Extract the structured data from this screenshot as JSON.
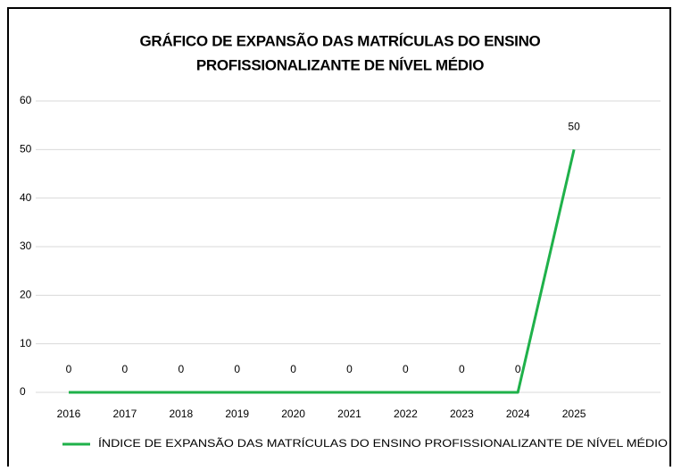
{
  "chart_data": {
    "type": "line",
    "title": [
      "GRÁFICO DE EXPANSÃO DAS MATRÍCULAS DO ENSINO",
      "PROFISSIONALIZANTE DE NÍVEL MÉDIO"
    ],
    "categories": [
      "2016",
      "2017",
      "2018",
      "2019",
      "2020",
      "2021",
      "2022",
      "2023",
      "2024",
      "2025"
    ],
    "series": [
      {
        "name": "ÍNDICE DE EXPANSÃO DAS MATRÍCULAS DO ENSINO PROFISSIONALIZANTE DE NÍVEL MÉDIO",
        "color": "#1fb14a",
        "values": [
          0,
          0,
          0,
          0,
          0,
          0,
          0,
          0,
          0,
          50
        ]
      }
    ],
    "ylim": [
      0,
      60
    ],
    "yticks": [
      0,
      10,
      20,
      30,
      40,
      50,
      60
    ],
    "grid": true,
    "legend": "bottom"
  }
}
